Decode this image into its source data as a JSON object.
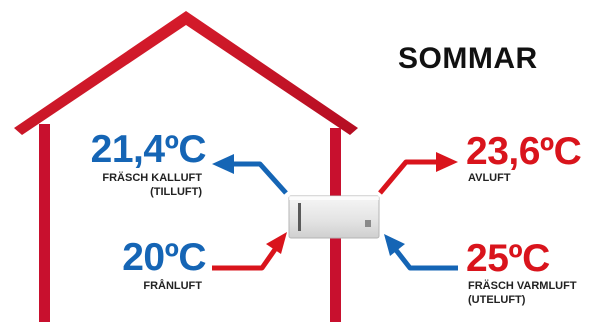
{
  "season_title": "SOMMAR",
  "colors": {
    "red": "#d9141c",
    "blue": "#1565b5",
    "house_red": "#c8102e"
  },
  "readings": {
    "supply_air": {
      "temp": "21,4ºC",
      "label_line1": "FRÄSCH KALLUFT",
      "label_line2": "(TILLUFT)"
    },
    "extract_air": {
      "temp": "20ºC",
      "label_line1": "FRÅNLUFT"
    },
    "exhaust_air": {
      "temp": "23,6ºC",
      "label_line1": "AVLUFT"
    },
    "outdoor_air": {
      "temp": "25ºC",
      "label_line1": "FRÄSCH VARMLUFT",
      "label_line2": "(UTELUFT)"
    }
  },
  "icons": {
    "house": "house-outline-icon",
    "unit": "ventilation-unit-icon",
    "arrows": [
      "supply-arrow-icon",
      "extract-arrow-icon",
      "exhaust-arrow-icon",
      "outdoor-arrow-icon"
    ]
  }
}
